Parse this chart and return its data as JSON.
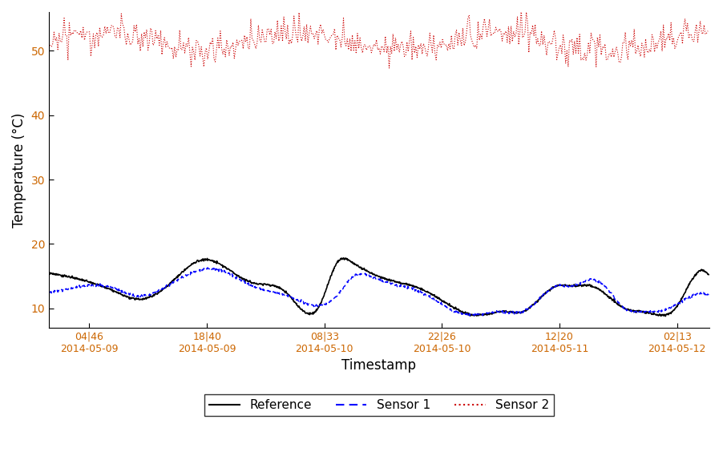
{
  "title": "",
  "xlabel": "Timestamp",
  "ylabel": "Temperature (°C)",
  "ylim": [
    7,
    56
  ],
  "yticks": [
    10,
    20,
    30,
    40,
    50
  ],
  "background_color": "#ffffff",
  "reference_color": "#000000",
  "sensor1_color": "#0000ff",
  "sensor2_color": "#cc0000",
  "tick_label_color": "#cc6600",
  "xtick_labels": [
    "04|46\n2014-05-09",
    "18|40\n2014-05-09",
    "08|33\n2014-05-10",
    "22|26\n2014-05-10",
    "12|20\n2014-05-11",
    "02|13\n2014-05-12"
  ],
  "xtick_positions_hours": [
    4.77,
    18.67,
    32.55,
    46.43,
    60.33,
    74.22
  ],
  "sensor2_mean": 51.5,
  "sensor2_noise": 1.2,
  "legend_labels": [
    "Reference",
    "Sensor 1",
    "Sensor 2"
  ],
  "legend_linestyles": [
    "solid",
    "dashed",
    "dotted"
  ],
  "legend_colors": [
    "#000000",
    "#0000ff",
    "#cc0000"
  ]
}
